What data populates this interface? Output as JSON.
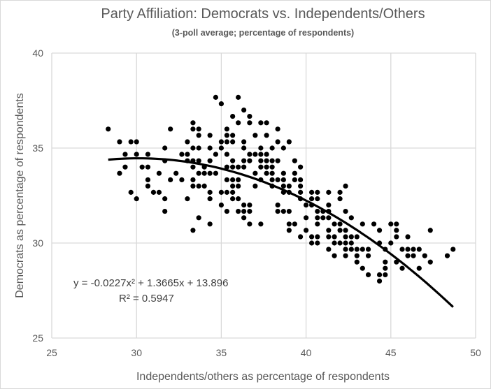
{
  "chart_data": {
    "type": "scatter",
    "title": "Party Affiliation: Democrats vs. Independents/Others",
    "subtitle": "(3-poll average; percentage of respondents)",
    "xlabel": "Independents/others as percentage of respondents",
    "ylabel": "Democrats as percentage of respondents",
    "xlim": [
      25,
      50
    ],
    "ylim": [
      25,
      40
    ],
    "xticks": [
      "25",
      "30",
      "35",
      "40",
      "45",
      "50"
    ],
    "yticks": [
      "25",
      "30",
      "35",
      "40"
    ],
    "grid": true,
    "legend": "none",
    "point_color": "#000000",
    "trendline": {
      "type": "polynomial",
      "coefficients": [
        -0.0227,
        1.3665,
        13.896
      ],
      "x_range": [
        28.33,
        48.67
      ],
      "equation_label": "y = -0.0227x² + 1.3665x + 13.896",
      "r2_label": "R² = 0.5947"
    },
    "points": [
      [
        34.67,
        37.67
      ],
      [
        36.0,
        37.67
      ],
      [
        35.0,
        37.33
      ],
      [
        36.33,
        37.0
      ],
      [
        35.67,
        36.67
      ],
      [
        36.67,
        36.67
      ],
      [
        33.33,
        36.33
      ],
      [
        36.0,
        36.33
      ],
      [
        36.67,
        36.33
      ],
      [
        37.33,
        36.33
      ],
      [
        37.67,
        36.33
      ],
      [
        28.33,
        36.0
      ],
      [
        32.0,
        36.0
      ],
      [
        33.33,
        36.0
      ],
      [
        33.67,
        36.0
      ],
      [
        35.33,
        36.0
      ],
      [
        38.33,
        36.0
      ],
      [
        33.67,
        35.67
      ],
      [
        34.33,
        35.67
      ],
      [
        35.33,
        35.67
      ],
      [
        35.67,
        35.67
      ],
      [
        37.0,
        35.67
      ],
      [
        37.67,
        35.67
      ],
      [
        29.0,
        35.33
      ],
      [
        29.67,
        35.33
      ],
      [
        30.0,
        35.33
      ],
      [
        33.0,
        35.33
      ],
      [
        35.0,
        35.33
      ],
      [
        35.33,
        35.33
      ],
      [
        35.67,
        35.33
      ],
      [
        36.33,
        35.33
      ],
      [
        38.33,
        35.33
      ],
      [
        39.0,
        35.33
      ],
      [
        31.67,
        35.0
      ],
      [
        33.33,
        35.0
      ],
      [
        33.67,
        35.0
      ],
      [
        34.33,
        35.0
      ],
      [
        35.0,
        35.0
      ],
      [
        36.33,
        35.0
      ],
      [
        37.33,
        35.0
      ],
      [
        38.0,
        35.0
      ],
      [
        38.67,
        35.0
      ],
      [
        29.33,
        34.67
      ],
      [
        30.0,
        34.67
      ],
      [
        30.67,
        34.67
      ],
      [
        32.67,
        34.67
      ],
      [
        33.0,
        34.67
      ],
      [
        34.67,
        34.67
      ],
      [
        35.33,
        34.67
      ],
      [
        36.67,
        34.67
      ],
      [
        37.0,
        34.67
      ],
      [
        37.33,
        34.67
      ],
      [
        37.67,
        34.67
      ],
      [
        31.67,
        34.33
      ],
      [
        33.0,
        34.33
      ],
      [
        33.33,
        34.33
      ],
      [
        33.67,
        34.33
      ],
      [
        34.33,
        34.33
      ],
      [
        35.67,
        34.33
      ],
      [
        36.33,
        34.33
      ],
      [
        36.67,
        34.33
      ],
      [
        37.33,
        34.33
      ],
      [
        37.67,
        34.33
      ],
      [
        38.0,
        34.33
      ],
      [
        38.33,
        34.33
      ],
      [
        39.33,
        34.33
      ],
      [
        29.33,
        34.0
      ],
      [
        30.33,
        34.0
      ],
      [
        30.67,
        34.0
      ],
      [
        33.33,
        34.0
      ],
      [
        34.0,
        34.0
      ],
      [
        35.33,
        34.0
      ],
      [
        35.67,
        34.0
      ],
      [
        36.0,
        34.0
      ],
      [
        36.33,
        34.0
      ],
      [
        37.33,
        34.0
      ],
      [
        37.67,
        34.0
      ],
      [
        38.0,
        34.0
      ],
      [
        39.67,
        34.0
      ],
      [
        29.0,
        33.67
      ],
      [
        31.33,
        33.67
      ],
      [
        32.33,
        33.67
      ],
      [
        33.67,
        33.67
      ],
      [
        34.0,
        33.67
      ],
      [
        34.33,
        33.67
      ],
      [
        34.67,
        33.67
      ],
      [
        37.0,
        33.67
      ],
      [
        37.67,
        33.67
      ],
      [
        38.0,
        33.67
      ],
      [
        38.67,
        33.67
      ],
      [
        39.33,
        33.67
      ],
      [
        30.67,
        33.33
      ],
      [
        32.0,
        33.33
      ],
      [
        32.67,
        33.33
      ],
      [
        33.33,
        33.33
      ],
      [
        35.33,
        33.33
      ],
      [
        35.67,
        33.33
      ],
      [
        36.0,
        33.33
      ],
      [
        37.33,
        33.33
      ],
      [
        38.0,
        33.33
      ],
      [
        38.33,
        33.33
      ],
      [
        38.67,
        33.33
      ],
      [
        39.33,
        33.33
      ],
      [
        39.67,
        33.33
      ],
      [
        30.67,
        33.0
      ],
      [
        33.33,
        33.0
      ],
      [
        33.67,
        33.0
      ],
      [
        34.0,
        33.0
      ],
      [
        35.67,
        33.0
      ],
      [
        36.0,
        33.0
      ],
      [
        37.0,
        33.0
      ],
      [
        38.0,
        33.0
      ],
      [
        38.67,
        33.0
      ],
      [
        39.0,
        33.0
      ],
      [
        39.67,
        33.0
      ],
      [
        42.33,
        33.0
      ],
      [
        29.67,
        32.67
      ],
      [
        31.0,
        32.67
      ],
      [
        31.33,
        32.67
      ],
      [
        34.33,
        32.67
      ],
      [
        35.0,
        32.67
      ],
      [
        35.33,
        32.67
      ],
      [
        35.67,
        32.67
      ],
      [
        38.67,
        32.67
      ],
      [
        39.0,
        32.67
      ],
      [
        39.67,
        32.67
      ],
      [
        40.33,
        32.67
      ],
      [
        40.67,
        32.67
      ],
      [
        41.33,
        32.67
      ],
      [
        42.0,
        32.67
      ],
      [
        30.0,
        32.33
      ],
      [
        31.67,
        32.33
      ],
      [
        33.0,
        32.33
      ],
      [
        34.33,
        32.33
      ],
      [
        35.67,
        32.33
      ],
      [
        36.0,
        32.33
      ],
      [
        39.67,
        32.33
      ],
      [
        40.33,
        32.33
      ],
      [
        40.67,
        32.33
      ],
      [
        42.0,
        32.33
      ],
      [
        35.0,
        32.0
      ],
      [
        36.33,
        32.0
      ],
      [
        36.67,
        32.0
      ],
      [
        38.33,
        32.0
      ],
      [
        40.0,
        32.0
      ],
      [
        40.33,
        32.0
      ],
      [
        41.33,
        32.0
      ],
      [
        31.67,
        31.67
      ],
      [
        35.33,
        31.67
      ],
      [
        36.0,
        31.67
      ],
      [
        36.33,
        31.67
      ],
      [
        36.67,
        31.67
      ],
      [
        38.33,
        31.67
      ],
      [
        38.67,
        31.67
      ],
      [
        39.0,
        31.67
      ],
      [
        40.67,
        31.67
      ],
      [
        41.0,
        31.67
      ],
      [
        41.33,
        31.67
      ],
      [
        42.33,
        31.67
      ],
      [
        33.67,
        31.33
      ],
      [
        36.33,
        31.33
      ],
      [
        40.0,
        31.33
      ],
      [
        40.67,
        31.33
      ],
      [
        41.0,
        31.33
      ],
      [
        41.33,
        31.33
      ],
      [
        42.67,
        31.33
      ],
      [
        34.33,
        31.0
      ],
      [
        36.67,
        31.0
      ],
      [
        37.33,
        31.0
      ],
      [
        39.0,
        31.0
      ],
      [
        39.33,
        31.0
      ],
      [
        40.67,
        31.0
      ],
      [
        41.67,
        31.0
      ],
      [
        42.0,
        31.0
      ],
      [
        43.33,
        31.0
      ],
      [
        44.0,
        31.0
      ],
      [
        45.0,
        31.0
      ],
      [
        45.33,
        31.0
      ],
      [
        33.33,
        30.67
      ],
      [
        39.0,
        30.67
      ],
      [
        40.0,
        30.67
      ],
      [
        41.33,
        30.67
      ],
      [
        42.0,
        30.67
      ],
      [
        42.33,
        30.67
      ],
      [
        44.33,
        30.67
      ],
      [
        45.33,
        30.67
      ],
      [
        47.33,
        30.67
      ],
      [
        39.67,
        30.33
      ],
      [
        40.33,
        30.33
      ],
      [
        40.67,
        30.33
      ],
      [
        41.33,
        30.33
      ],
      [
        41.67,
        30.33
      ],
      [
        42.33,
        30.33
      ],
      [
        42.67,
        30.33
      ],
      [
        43.0,
        30.33
      ],
      [
        45.33,
        30.33
      ],
      [
        46.0,
        30.33
      ],
      [
        40.33,
        30.0
      ],
      [
        40.67,
        30.0
      ],
      [
        41.67,
        30.0
      ],
      [
        42.0,
        30.0
      ],
      [
        42.33,
        30.0
      ],
      [
        42.67,
        30.0
      ],
      [
        44.33,
        30.0
      ],
      [
        45.0,
        30.0
      ],
      [
        41.33,
        29.67
      ],
      [
        42.33,
        29.67
      ],
      [
        42.67,
        29.67
      ],
      [
        43.0,
        29.67
      ],
      [
        43.33,
        29.67
      ],
      [
        43.67,
        29.67
      ],
      [
        44.67,
        29.67
      ],
      [
        45.67,
        29.67
      ],
      [
        46.0,
        29.67
      ],
      [
        46.33,
        29.67
      ],
      [
        46.67,
        29.67
      ],
      [
        48.67,
        29.67
      ],
      [
        41.67,
        29.33
      ],
      [
        42.33,
        29.33
      ],
      [
        43.0,
        29.33
      ],
      [
        43.67,
        29.33
      ],
      [
        46.0,
        29.33
      ],
      [
        46.33,
        29.33
      ],
      [
        47.0,
        29.33
      ],
      [
        48.33,
        29.33
      ],
      [
        43.0,
        29.0
      ],
      [
        44.67,
        29.0
      ],
      [
        45.33,
        29.0
      ],
      [
        47.33,
        29.0
      ],
      [
        43.33,
        28.67
      ],
      [
        44.67,
        28.67
      ],
      [
        45.67,
        28.67
      ],
      [
        46.67,
        28.67
      ],
      [
        43.67,
        28.33
      ],
      [
        44.33,
        28.33
      ],
      [
        44.67,
        28.33
      ],
      [
        44.33,
        28.0
      ]
    ]
  }
}
